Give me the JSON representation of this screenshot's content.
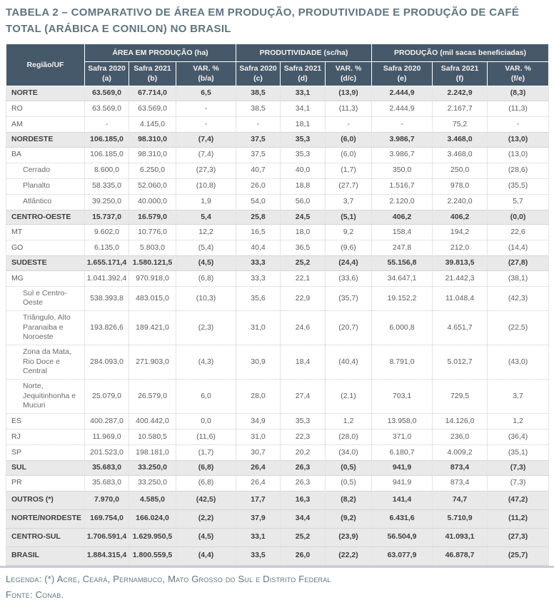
{
  "title": "TABELA 2 – COMPARATIVO DE ÁREA EM PRODUÇÃO, PRODUTIVIDADE E PRODUÇÃO DE CAFÉ TOTAL (ARÁBICA E CONILON) NO BRASIL",
  "colors": {
    "header_bg": "#46596b",
    "header_text": "#f6f1ed",
    "section_row_bg": "#e9e9ea",
    "body_text": "#5c5c5c",
    "title_text": "#5f7482",
    "bottom_line": "#c8ccd8"
  },
  "table": {
    "corner_header": "Região/UF",
    "groups": [
      {
        "label": "ÁREA EM PRODUÇÃO (ha)",
        "columns": [
          "Safra 2020\n(a)",
          "Safra 2021\n(b)",
          "VAR. %\n(b/a)"
        ]
      },
      {
        "label": "PRODUTIVIDADE (sc/ha)",
        "columns": [
          "Safra 2020\n(c)",
          "Safra 2021\n(d)",
          "VAR. %\n(d/c)"
        ]
      },
      {
        "label": "PRODUÇÃO (mil sacas beneficiadas)",
        "columns": [
          "Safra 2020\n(e)",
          "Safra 2021\n(f)",
          "VAR. %\n(f/e)"
        ]
      }
    ],
    "rows": [
      {
        "label": "NORTE",
        "type": "section",
        "values": [
          "63.569,0",
          "67.714,0",
          "6,5",
          "38,5",
          "33,1",
          "(13,9)",
          "2.444,9",
          "2.242,9",
          "(8,3)"
        ]
      },
      {
        "label": "RO",
        "type": "std",
        "values": [
          "63.569,0",
          "63.569,0",
          "-",
          "38,5",
          "34,1",
          "(11,3)",
          "2.444,9",
          "2.167,7",
          "(11,3)"
        ]
      },
      {
        "label": "AM",
        "type": "std",
        "values": [
          "-",
          "4.145,0",
          "-",
          "-",
          "18,1",
          "-",
          "-",
          "75,2",
          "-"
        ]
      },
      {
        "label": "NORDESTE",
        "type": "section",
        "values": [
          "106.185,0",
          "98.310,0",
          "(7,4)",
          "37,5",
          "35,3",
          "(6,0)",
          "3.986,7",
          "3.468,0",
          "(13,0)"
        ]
      },
      {
        "label": "BA",
        "type": "std",
        "values": [
          "106.185,0",
          "98.310,0",
          "(7,4)",
          "37,5",
          "35,3",
          "(6,0)",
          "3.986,7",
          "3.468,0",
          "(13,0)"
        ]
      },
      {
        "label": "Cerrado",
        "type": "std sub",
        "values": [
          "8.600,0",
          "6.250,0",
          "(27,3)",
          "40,7",
          "40,0",
          "(1,7)",
          "350,0",
          "250,0",
          "(28,6)"
        ]
      },
      {
        "label": "Planalto",
        "type": "std sub",
        "values": [
          "58.335,0",
          "52.060,0",
          "(10,8)",
          "26,0",
          "18,8",
          "(27,7)",
          "1.516,7",
          "978,0",
          "(35,5)"
        ]
      },
      {
        "label": "Atlântico",
        "type": "std sub",
        "values": [
          "39.250,0",
          "40.000,0",
          "1,9",
          "54,0",
          "56,0",
          "3,7",
          "2.120,0",
          "2.240,0",
          "5,7"
        ]
      },
      {
        "label": "CENTRO-OESTE",
        "type": "section",
        "values": [
          "15.737,0",
          "16.579,0",
          "5,4",
          "25,8",
          "24,5",
          "(5,1)",
          "406,2",
          "406,2",
          "(0,0)"
        ]
      },
      {
        "label": "MT",
        "type": "std",
        "values": [
          "9.602,0",
          "10.776,0",
          "12,2",
          "16,5",
          "18,0",
          "9,2",
          "158,4",
          "194,2",
          "22,6"
        ]
      },
      {
        "label": "GO",
        "type": "std",
        "values": [
          "6.135,0",
          "5.803,0",
          "(5,4)",
          "40,4",
          "36,5",
          "(9,6)",
          "247,8",
          "212,0",
          "(14,4)"
        ]
      },
      {
        "label": "SUDESTE",
        "type": "section",
        "values": [
          "1.655.171,4",
          "1.580.121,5",
          "(4,5)",
          "33,3",
          "25,2",
          "(24,4)",
          "55.156,8",
          "39.813,5",
          "(27,8)"
        ]
      },
      {
        "label": "MG",
        "type": "std",
        "values": [
          "1.041.392,4",
          "970.918,0",
          "(6,8)",
          "33,3",
          "22,1",
          "(33,6)",
          "34.647,1",
          "21.442,3",
          "(38,1)"
        ]
      },
      {
        "label": "Sul e Centro-Oeste",
        "type": "std sub",
        "values": [
          "538.393,8",
          "483.015,0",
          "(10,3)",
          "35,6",
          "22,9",
          "(35,7)",
          "19.152,2",
          "11.048,4",
          "(42,3)"
        ]
      },
      {
        "label": "Triângulo, Alto Paranaiba e Noroeste",
        "type": "sub",
        "values": [
          "193.826,6",
          "189.421,0",
          "(2,3)",
          "31,0",
          "24,6",
          "(20,7)",
          "6.000,8",
          "4.651,7",
          "(22,5)"
        ]
      },
      {
        "label": "Zona da Mata, Rio Doce e Central",
        "type": "sub",
        "values": [
          "284.093,0",
          "271.903,0",
          "(4,3)",
          "30,9",
          "18,4",
          "(40,4)",
          "8.791,0",
          "5.012,7",
          "(43,0)"
        ]
      },
      {
        "label": "Norte, Jequitinhonha e Mucuri",
        "type": "sub",
        "values": [
          "25.079,0",
          "26.579,0",
          "6,0",
          "28,0",
          "27,4",
          "(2,1)",
          "703,1",
          "729,5",
          "3,7"
        ]
      },
      {
        "label": "ES",
        "type": "std",
        "values": [
          "400.287,0",
          "400.442,0",
          "0,0",
          "34,9",
          "35,3",
          "1,2",
          "13.958,0",
          "14.126,0",
          "1,2"
        ]
      },
      {
        "label": "RJ",
        "type": "std",
        "values": [
          "11.969,0",
          "10.580,5",
          "(11,6)",
          "31,0",
          "22,3",
          "(28,0)",
          "371,0",
          "236,0",
          "(36,4)"
        ]
      },
      {
        "label": "SP",
        "type": "std",
        "values": [
          "201.523,0",
          "198.181,0",
          "(1,7)",
          "30,7",
          "20,2",
          "(34,0)",
          "6.180,7",
          "4.009,2",
          "(35,1)"
        ]
      },
      {
        "label": "SUL",
        "type": "section",
        "values": [
          "35.683,0",
          "33.250,0",
          "(6,8)",
          "26,4",
          "26,3",
          "(0,5)",
          "941,9",
          "873,4",
          "(7,3)"
        ]
      },
      {
        "label": "PR",
        "type": "std",
        "values": [
          "35.683,0",
          "33.250,0",
          "(6,8)",
          "26,4",
          "26,3",
          "(0,5)",
          "941,9",
          "873,4",
          "(7,3)"
        ]
      },
      {
        "label": "OUTROS (*)",
        "type": "total",
        "values": [
          "7.970,0",
          "4.585,0",
          "(42,5)",
          "17,7",
          "16,3",
          "(8,2)",
          "141,4",
          "74,7",
          "(47,2)"
        ]
      },
      {
        "label": "NORTE/NORDESTE",
        "type": "total",
        "values": [
          "169.754,0",
          "166.024,0",
          "(2,2)",
          "37,9",
          "34,4",
          "(9,2)",
          "6.431,6",
          "5.710,9",
          "(11,2)"
        ]
      },
      {
        "label": "CENTRO-SUL",
        "type": "total",
        "values": [
          "1.706.591,4",
          "1.629.950,5",
          "(4,5)",
          "33,1",
          "25,2",
          "(23,9)",
          "56.504,9",
          "41.093,1",
          "(27,3)"
        ]
      },
      {
        "label": "BRASIL",
        "type": "total",
        "values": [
          "1.884.315,4",
          "1.800.559,5",
          "(4,4)",
          "33,5",
          "26,0",
          "(22,2)",
          "63.077,9",
          "46.878,7",
          "(25,7)"
        ]
      }
    ]
  },
  "footer": {
    "legend": "Legenda: (*) Acre, Ceará, Pernambuco, Mato Grosso do Sul e Distrito Federal",
    "source": "Fonte: Conab."
  }
}
